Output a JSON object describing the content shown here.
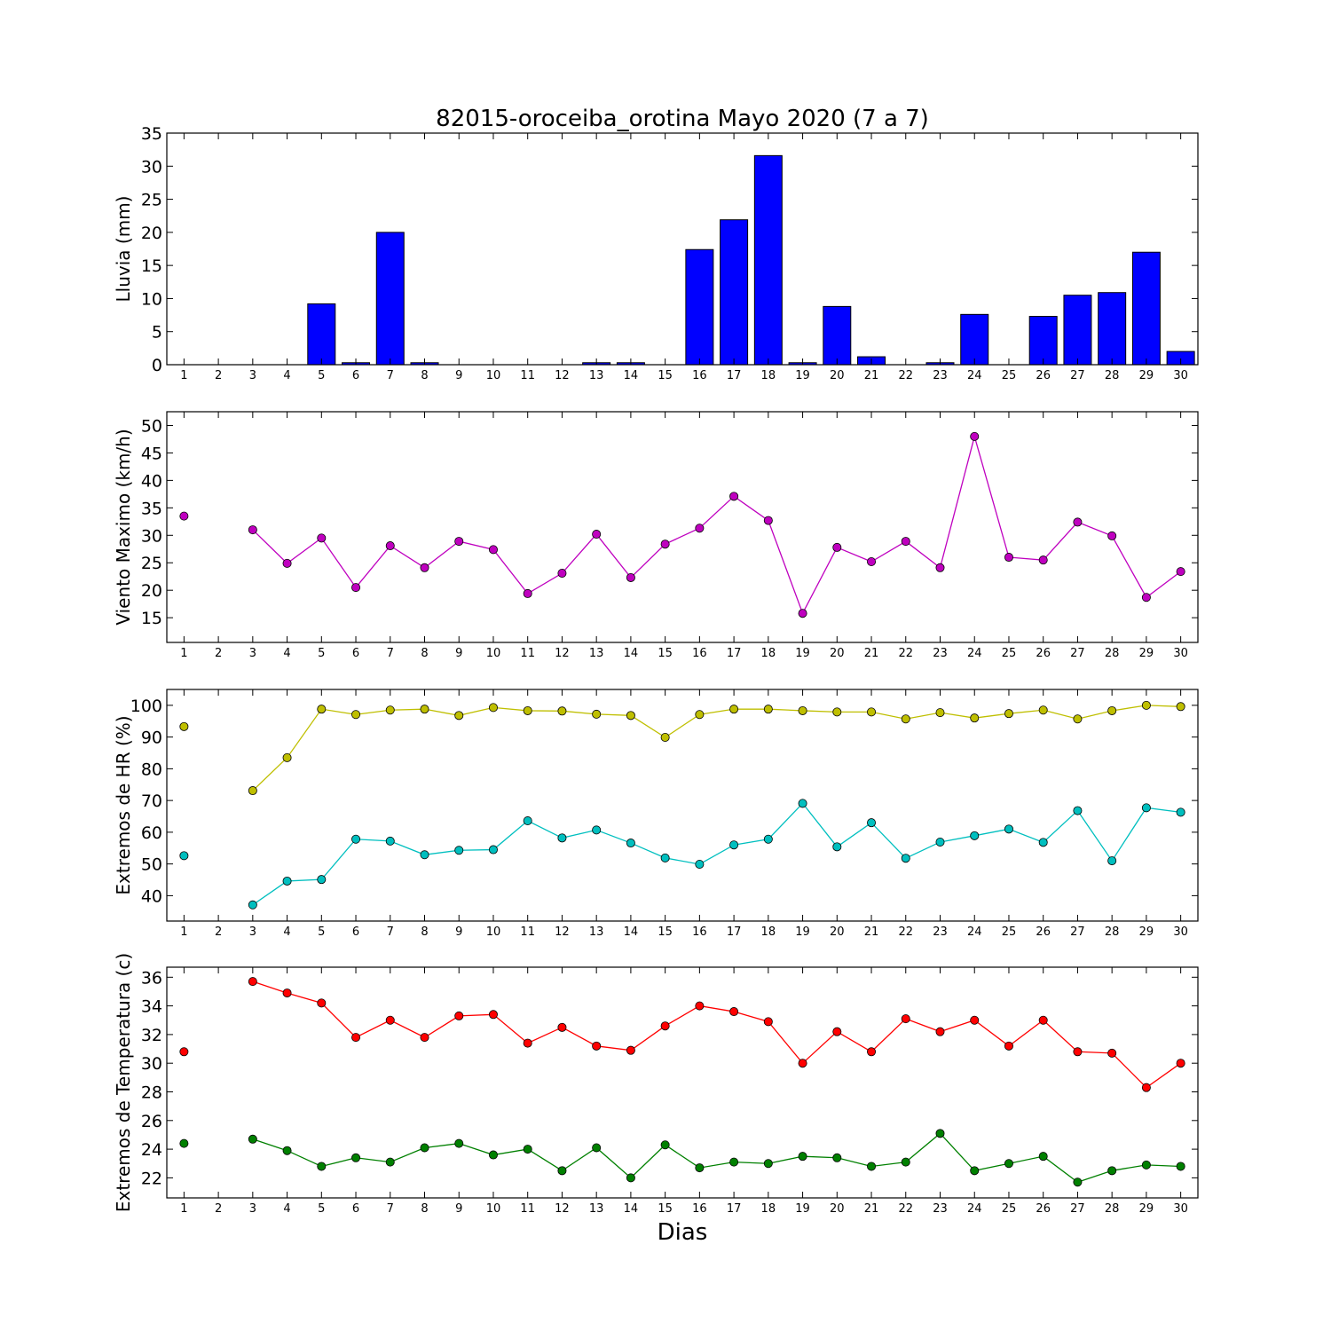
{
  "title": "82015-oroceiba_orotina Mayo 2020  (7 a 7)",
  "xlabel": "Dias",
  "colors": {
    "rain": "#0000ff",
    "wind": "#bf00bf",
    "hr_max": "#bfbf00",
    "hr_min": "#00bfbf",
    "temp_max": "#ff0000",
    "temp_min": "#008000"
  },
  "chart_data": [
    {
      "type": "bar",
      "ylabel": "Lluvia (mm)",
      "ylim": [
        0,
        35
      ],
      "yticks": [
        0,
        5,
        10,
        15,
        20,
        25,
        30,
        35
      ],
      "x": [
        1,
        2,
        3,
        4,
        5,
        6,
        7,
        8,
        9,
        10,
        11,
        12,
        13,
        14,
        15,
        16,
        17,
        18,
        19,
        20,
        21,
        22,
        23,
        24,
        25,
        26,
        27,
        28,
        29,
        30
      ],
      "series": [
        {
          "values": [
            0,
            0,
            0,
            0,
            9.2,
            0.3,
            20,
            0.3,
            0,
            0,
            0,
            0,
            0.3,
            0.3,
            0,
            17.4,
            21.9,
            31.6,
            0.3,
            8.8,
            1.2,
            0,
            0.3,
            7.6,
            0,
            7.3,
            10.5,
            10.9,
            17,
            2
          ],
          "color_key": "rain"
        }
      ]
    },
    {
      "type": "line",
      "ylabel": "Viento Maximo (km/h)",
      "ylim": [
        10.5,
        52.5
      ],
      "yticks": [
        15,
        20,
        25,
        30,
        35,
        40,
        45,
        50
      ],
      "x": [
        1,
        2,
        3,
        4,
        5,
        6,
        7,
        8,
        9,
        10,
        11,
        12,
        13,
        14,
        15,
        16,
        17,
        18,
        19,
        20,
        21,
        22,
        23,
        24,
        25,
        26,
        27,
        28,
        29,
        30
      ],
      "series": [
        {
          "values": [
            33.5,
            null,
            31,
            24.9,
            29.5,
            20.5,
            28.1,
            24.1,
            28.9,
            27.4,
            19.4,
            23.1,
            30.2,
            22.3,
            28.4,
            31.3,
            37.1,
            32.7,
            15.8,
            27.8,
            25.2,
            28.9,
            24.1,
            48,
            26,
            25.5,
            32.4,
            29.9,
            18.7,
            23.4
          ],
          "color_key": "wind"
        }
      ]
    },
    {
      "type": "line",
      "ylabel": "Extremos de HR (%)",
      "ylim": [
        32,
        105
      ],
      "yticks": [
        40,
        50,
        60,
        70,
        80,
        90,
        100
      ],
      "x": [
        1,
        2,
        3,
        4,
        5,
        6,
        7,
        8,
        9,
        10,
        11,
        12,
        13,
        14,
        15,
        16,
        17,
        18,
        19,
        20,
        21,
        22,
        23,
        24,
        25,
        26,
        27,
        28,
        29,
        30
      ],
      "series": [
        {
          "values": [
            93.3,
            null,
            73.1,
            83.5,
            98.8,
            97.1,
            98.5,
            98.8,
            96.8,
            99.3,
            98.3,
            98.2,
            97.2,
            96.8,
            89.9,
            97.1,
            98.8,
            98.8,
            98.3,
            97.9,
            97.9,
            95.7,
            97.7,
            96,
            97.4,
            98.5,
            95.7,
            98.3,
            100,
            99.6
          ],
          "color_key": "hr_max"
        },
        {
          "values": [
            52.6,
            null,
            37.1,
            44.6,
            45.1,
            57.8,
            57.2,
            52.9,
            54.3,
            54.5,
            63.6,
            58.2,
            60.7,
            56.6,
            51.9,
            49.9,
            56,
            57.8,
            69.1,
            55.4,
            63,
            51.8,
            56.9,
            58.9,
            61,
            56.8,
            66.8,
            51,
            67.7,
            66.3
          ],
          "color_key": "hr_min"
        }
      ]
    },
    {
      "type": "line",
      "ylabel": "Extremos de Temperatura (c)",
      "ylim": [
        20.6,
        36.7
      ],
      "yticks": [
        22,
        24,
        26,
        28,
        30,
        32,
        34,
        36
      ],
      "x": [
        1,
        2,
        3,
        4,
        5,
        6,
        7,
        8,
        9,
        10,
        11,
        12,
        13,
        14,
        15,
        16,
        17,
        18,
        19,
        20,
        21,
        22,
        23,
        24,
        25,
        26,
        27,
        28,
        29,
        30
      ],
      "series": [
        {
          "values": [
            30.8,
            null,
            35.7,
            34.9,
            34.2,
            31.8,
            33,
            31.8,
            33.3,
            33.4,
            31.4,
            32.5,
            31.2,
            30.9,
            32.6,
            34,
            33.6,
            32.9,
            30,
            32.2,
            30.8,
            33.1,
            32.2,
            33,
            31.2,
            33,
            30.8,
            30.7,
            28.3,
            30
          ],
          "color_key": "temp_max"
        },
        {
          "values": [
            24.4,
            null,
            24.7,
            23.9,
            22.8,
            23.4,
            23.1,
            24.1,
            24.4,
            23.6,
            24,
            22.5,
            24.1,
            22,
            24.3,
            22.7,
            23.1,
            23,
            23.5,
            23.4,
            22.8,
            23.1,
            25.1,
            22.5,
            23,
            23.5,
            21.7,
            22.5,
            22.9,
            22.8
          ],
          "color_key": "temp_min"
        }
      ]
    }
  ]
}
